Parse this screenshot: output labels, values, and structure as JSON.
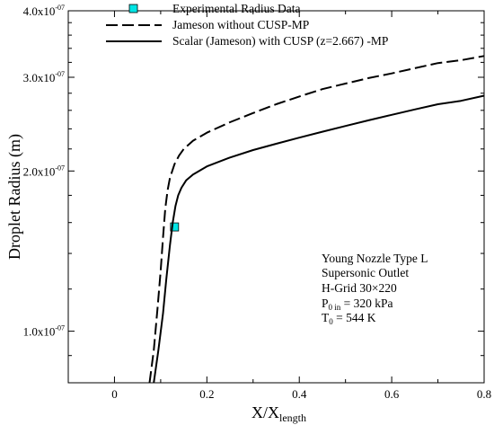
{
  "chart_data": {
    "type": "line",
    "title": "",
    "xlabel": {
      "main": "X/X",
      "sub": "length"
    },
    "ylabel": "Droplet Radius (m)",
    "xlim": [
      -0.1,
      0.8
    ],
    "ylim": [
      8e-08,
      4e-07
    ],
    "yscale": "log",
    "grid": false,
    "legend_position": "top",
    "x_ticks": [
      {
        "value": 0,
        "label": "0"
      },
      {
        "value": 0.2,
        "label": "0.2"
      },
      {
        "value": 0.4,
        "label": "0.4"
      },
      {
        "value": 0.6,
        "label": "0.6"
      },
      {
        "value": 0.8,
        "label": "0.8"
      }
    ],
    "y_ticks": [
      {
        "value": 1e-07,
        "mantissa": "1.0x10",
        "exp": "-07"
      },
      {
        "value": 2e-07,
        "mantissa": "2.0x10",
        "exp": "-07"
      },
      {
        "value": 3e-07,
        "mantissa": "3.0x10",
        "exp": "-07"
      },
      {
        "value": 4e-07,
        "mantissa": "4.0x10",
        "exp": "-07"
      }
    ],
    "series": [
      {
        "name": "Experimental Radius Data",
        "style": "marker",
        "color": "#00e5e5",
        "x": [
          0.13
        ],
        "y": [
          1.57e-07
        ]
      },
      {
        "name": "Jameson without CUSP-MP",
        "style": "dashed",
        "color": "#000000",
        "x": [
          0.076,
          0.085,
          0.093,
          0.1,
          0.105,
          0.11,
          0.115,
          0.12,
          0.13,
          0.14,
          0.15,
          0.17,
          0.2,
          0.25,
          0.3,
          0.35,
          0.4,
          0.45,
          0.5,
          0.55,
          0.6,
          0.65,
          0.7,
          0.75,
          0.8
        ],
        "y": [
          8e-08,
          9.2e-08,
          1.1e-07,
          1.3e-07,
          1.5e-07,
          1.7e-07,
          1.84e-07,
          1.94e-07,
          2.06e-07,
          2.14e-07,
          2.2e-07,
          2.28e-07,
          2.36e-07,
          2.47e-07,
          2.57e-07,
          2.67e-07,
          2.76e-07,
          2.85e-07,
          2.92e-07,
          2.99e-07,
          3.05e-07,
          3.12e-07,
          3.19e-07,
          3.23e-07,
          3.29e-07
        ]
      },
      {
        "name": "Scalar (Jameson) with CUSP (z=2.667) -MP",
        "style": "solid",
        "color": "#000000",
        "x": [
          0.085,
          0.095,
          0.105,
          0.112,
          0.12,
          0.126,
          0.132,
          0.138,
          0.145,
          0.155,
          0.17,
          0.2,
          0.25,
          0.3,
          0.35,
          0.4,
          0.45,
          0.5,
          0.55,
          0.6,
          0.65,
          0.7,
          0.75,
          0.8
        ],
        "y": [
          8e-08,
          9.2e-08,
          1.08e-07,
          1.25e-07,
          1.45e-07,
          1.6e-07,
          1.72e-07,
          1.8e-07,
          1.86e-07,
          1.92e-07,
          1.97e-07,
          2.04e-07,
          2.12e-07,
          2.19e-07,
          2.25e-07,
          2.31e-07,
          2.37e-07,
          2.43e-07,
          2.49e-07,
          2.55e-07,
          2.61e-07,
          2.67e-07,
          2.71e-07,
          2.77e-07
        ]
      }
    ],
    "annotation": {
      "line1": "Young Nozzle Type L",
      "line2": "Supersonic Outlet",
      "line3": "H-Grid 30×220",
      "line4": {
        "main": "P",
        "sub": "0 in",
        "rest": " = 320 kPa"
      },
      "line5": {
        "main": "T",
        "sub": "0",
        "rest": " = 544 K"
      }
    }
  }
}
